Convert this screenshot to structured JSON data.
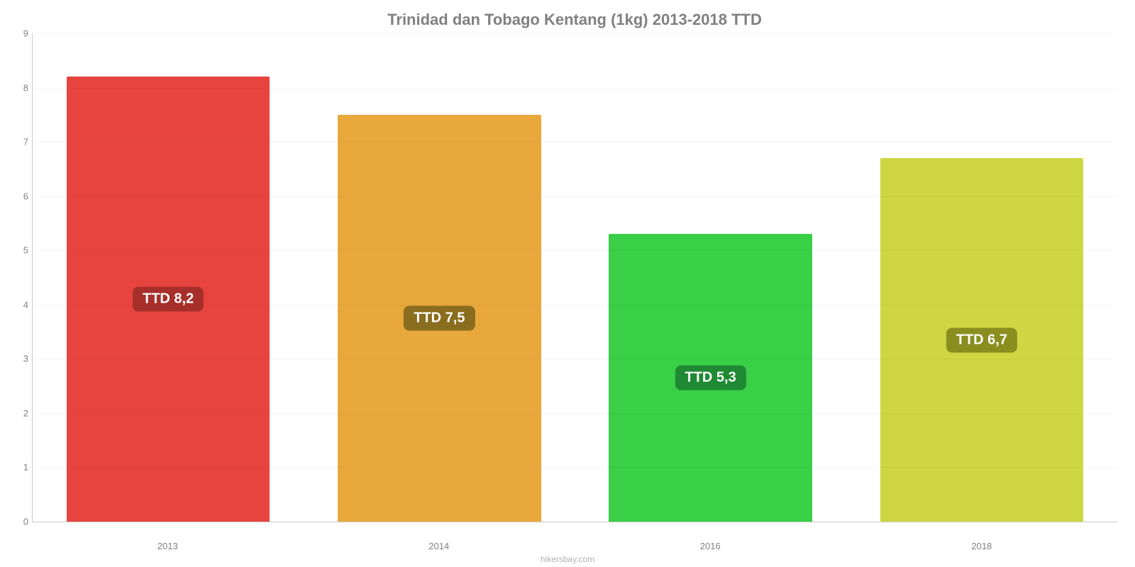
{
  "chart": {
    "type": "bar",
    "title": "Trinidad dan Tobago Kentang (1kg) 2013-2018 TTD",
    "title_fontsize": 22,
    "title_color": "#808080",
    "attribution": "hikersbay.com",
    "attribution_color": "#b0b0b0",
    "background_color": "#ffffff",
    "grid_color": "rgba(0,0,0,0.04)",
    "axis_color": "#cccccc",
    "tick_label_color": "#808080",
    "tick_fontsize": 13,
    "ylim": [
      0,
      9
    ],
    "ytick_step": 1,
    "bar_width_pct": 75,
    "value_label_fontsize": 20,
    "categories": [
      "2013",
      "2014",
      "2016",
      "2018"
    ],
    "values": [
      8.2,
      7.5,
      5.3,
      6.7
    ],
    "value_labels": [
      "TTD 8,2",
      "TTD 7,5",
      "TTD 5,3",
      "TTD 6,7"
    ],
    "bar_colors": [
      "#e8443f",
      "#e8a83c",
      "#39cf47",
      "#cfd643"
    ],
    "badge_colors": [
      "#a72f2b",
      "#8a6d1f",
      "#1f8a33",
      "#8a8e1f"
    ],
    "badge_text_color": "#ffffff"
  }
}
